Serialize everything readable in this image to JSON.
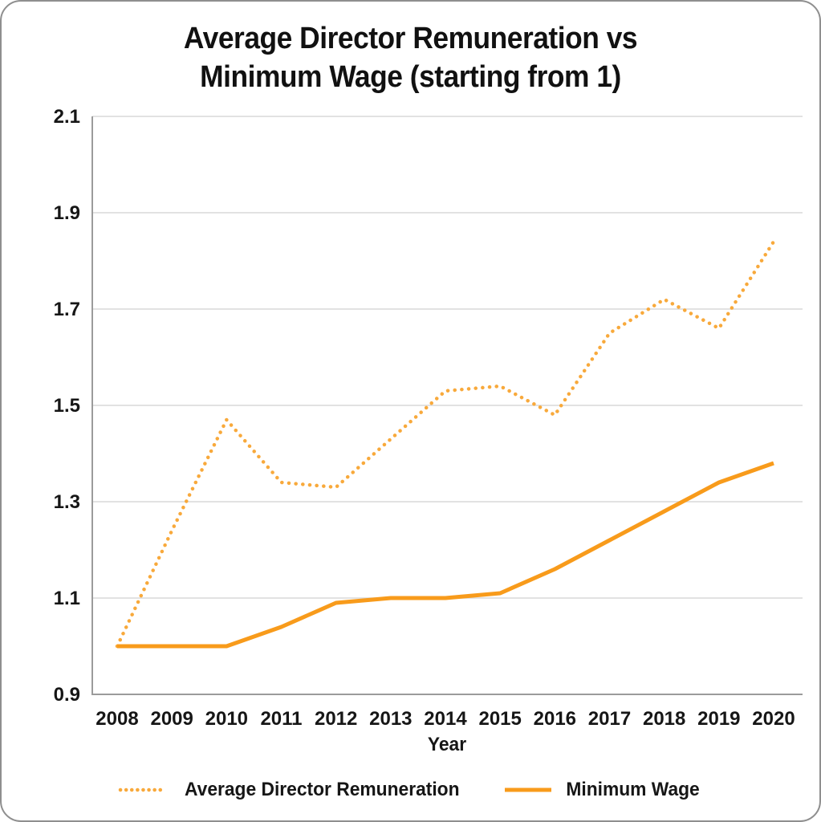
{
  "title": {
    "line1": "Average Director Remuneration vs",
    "line2": "Minimum Wage (starting from 1)"
  },
  "chart_data": {
    "type": "line",
    "x": [
      2008,
      2009,
      2010,
      2011,
      2012,
      2013,
      2014,
      2015,
      2016,
      2017,
      2018,
      2019,
      2020
    ],
    "series": [
      {
        "name": "Average Director Remuneration",
        "style": "dotted",
        "color": "#F8A93B",
        "values": [
          1.0,
          1.24,
          1.47,
          1.34,
          1.33,
          1.43,
          1.53,
          1.54,
          1.48,
          1.65,
          1.72,
          1.66,
          1.84
        ]
      },
      {
        "name": "Minimum Wage",
        "style": "solid",
        "color": "#F89B1B",
        "values": [
          1.0,
          1.0,
          1.0,
          1.04,
          1.09,
          1.1,
          1.1,
          1.11,
          1.16,
          1.22,
          1.28,
          1.34,
          1.38
        ]
      }
    ],
    "xlabel": "Year",
    "ylim": [
      0.9,
      2.1
    ],
    "yticks": [
      0.9,
      1.1,
      1.3,
      1.5,
      1.7,
      1.9,
      2.1
    ],
    "grid": true,
    "legend_position": "bottom"
  },
  "style_colors": {
    "grid": "#d8d8d8",
    "axis": "#9b9b9b",
    "text": "#161616",
    "card_border": "#8f8f8f"
  }
}
